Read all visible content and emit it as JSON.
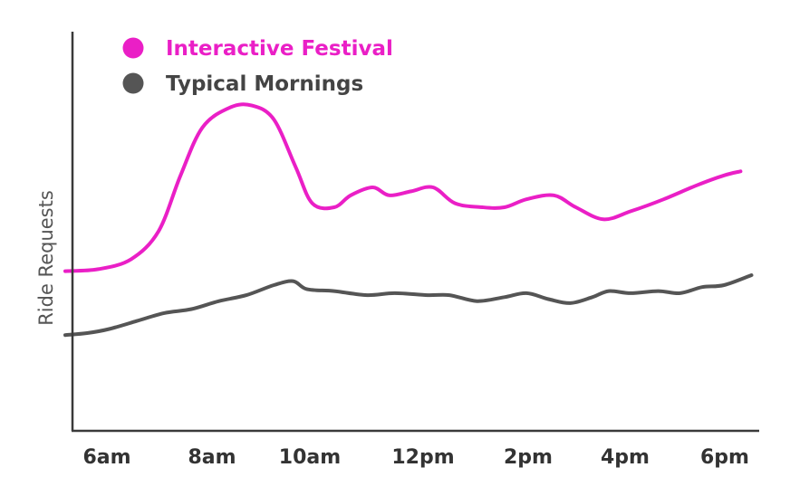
{
  "chart_data": {
    "type": "line",
    "title": "",
    "xlabel": "",
    "ylabel": "Ride Requests",
    "x_ticks": [
      "6am",
      "8am",
      "10am",
      "12pm",
      "2pm",
      "4pm",
      "6pm"
    ],
    "xlim": [
      6,
      18.5
    ],
    "ylim": [
      0,
      100
    ],
    "y_tick_labels_shown": false,
    "grid": false,
    "legend_position": "top-left",
    "series": [
      {
        "name": "Interactive Festival",
        "color": "#ea1fc6",
        "points": [
          [
            6.0,
            40
          ],
          [
            6.6,
            40.5
          ],
          [
            7.2,
            43
          ],
          [
            7.7,
            50
          ],
          [
            8.1,
            64
          ],
          [
            8.5,
            76
          ],
          [
            9.0,
            81
          ],
          [
            9.4,
            81.5
          ],
          [
            9.8,
            78
          ],
          [
            10.2,
            66
          ],
          [
            10.5,
            57
          ],
          [
            10.9,
            56
          ],
          [
            11.2,
            59
          ],
          [
            11.6,
            61
          ],
          [
            11.9,
            59
          ],
          [
            12.3,
            60
          ],
          [
            12.7,
            61
          ],
          [
            13.1,
            57
          ],
          [
            13.6,
            56
          ],
          [
            14.0,
            56
          ],
          [
            14.4,
            58
          ],
          [
            14.9,
            59
          ],
          [
            15.3,
            56
          ],
          [
            15.8,
            53
          ],
          [
            16.3,
            55
          ],
          [
            16.9,
            58
          ],
          [
            17.5,
            61.5
          ],
          [
            18.0,
            64
          ],
          [
            18.3,
            65
          ]
        ]
      },
      {
        "name": "Typical Mornings",
        "color": "#555555",
        "points": [
          [
            6.0,
            24
          ],
          [
            6.4,
            24.5
          ],
          [
            6.8,
            25.5
          ],
          [
            7.3,
            27.5
          ],
          [
            7.8,
            29.5
          ],
          [
            8.3,
            30.5
          ],
          [
            8.8,
            32.5
          ],
          [
            9.3,
            34
          ],
          [
            9.8,
            36.5
          ],
          [
            10.15,
            37.5
          ],
          [
            10.4,
            35.5
          ],
          [
            10.9,
            35
          ],
          [
            11.5,
            34
          ],
          [
            12.0,
            34.5
          ],
          [
            12.6,
            34
          ],
          [
            13.0,
            34
          ],
          [
            13.5,
            32.5
          ],
          [
            14.0,
            33.5
          ],
          [
            14.4,
            34.5
          ],
          [
            14.8,
            33
          ],
          [
            15.2,
            32
          ],
          [
            15.6,
            33.5
          ],
          [
            15.9,
            35
          ],
          [
            16.3,
            34.5
          ],
          [
            16.8,
            35
          ],
          [
            17.2,
            34.5
          ],
          [
            17.6,
            36
          ],
          [
            18.0,
            36.5
          ],
          [
            18.5,
            39
          ]
        ]
      }
    ]
  }
}
